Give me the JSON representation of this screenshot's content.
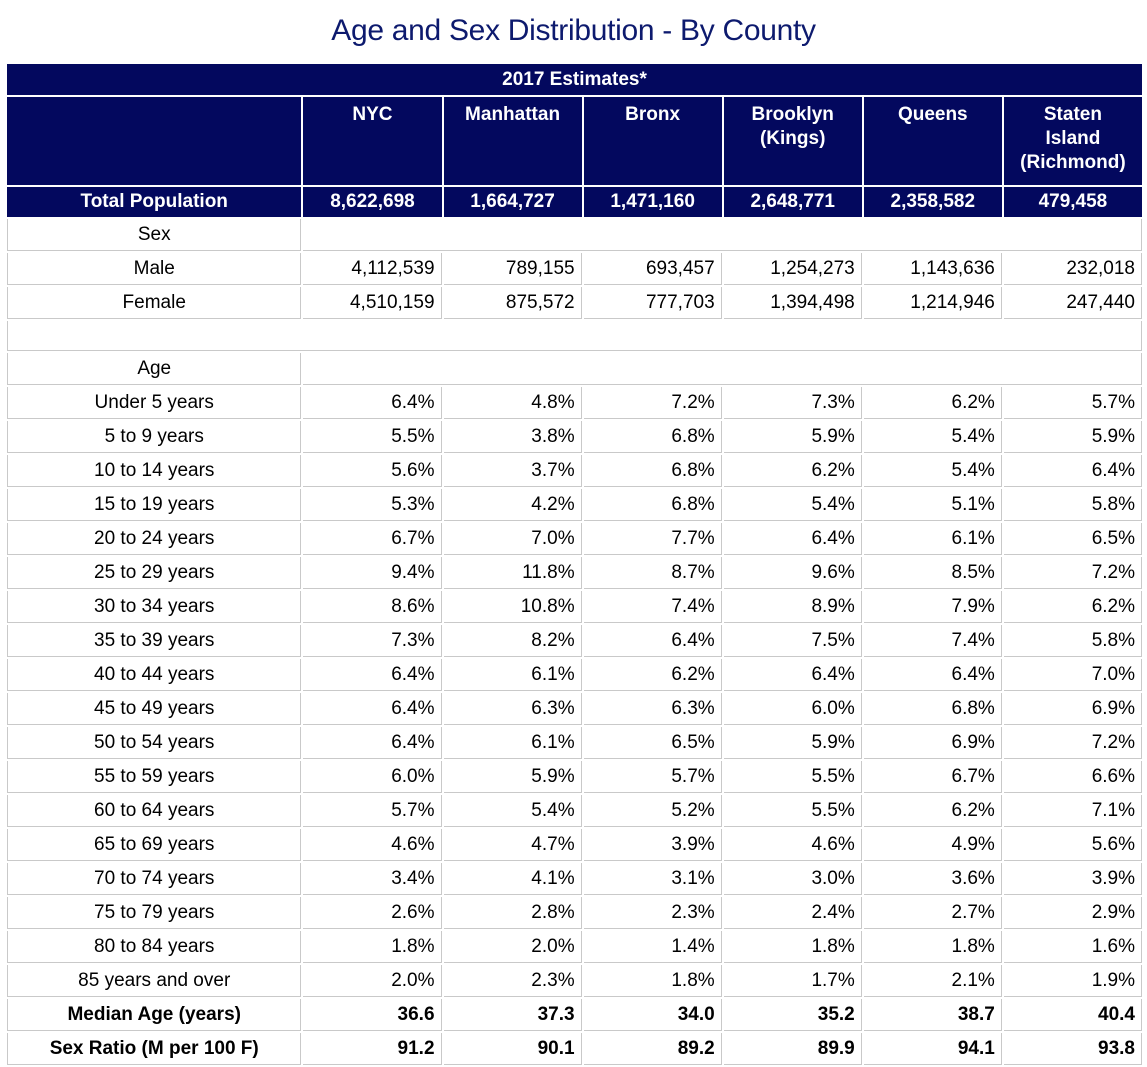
{
  "title": "Age and Sex Distribution - By County",
  "banner": "2017 Estimates*",
  "columns": [
    "NYC",
    "Manhattan",
    "Bronx",
    "Brooklyn\n(Kings)",
    "Queens",
    "Staten\nIsland\n(Richmond)"
  ],
  "total_population": {
    "label": "Total Population",
    "values": [
      "8,622,698",
      "1,664,727",
      "1,471,160",
      "2,648,771",
      "2,358,582",
      "479,458"
    ]
  },
  "sex": {
    "label": "Sex",
    "rows": [
      {
        "label": "Male",
        "values": [
          "4,112,539",
          "789,155",
          "693,457",
          "1,254,273",
          "1,143,636",
          "232,018"
        ]
      },
      {
        "label": "Female",
        "values": [
          "4,510,159",
          "875,572",
          "777,703",
          "1,394,498",
          "1,214,946",
          "247,440"
        ]
      }
    ]
  },
  "age": {
    "label": "Age",
    "rows": [
      {
        "label": "Under 5 years",
        "values": [
          "6.4%",
          "4.8%",
          "7.2%",
          "7.3%",
          "6.2%",
          "5.7%"
        ]
      },
      {
        "label": "5 to 9 years",
        "values": [
          "5.5%",
          "3.8%",
          "6.8%",
          "5.9%",
          "5.4%",
          "5.9%"
        ]
      },
      {
        "label": "10 to 14 years",
        "values": [
          "5.6%",
          "3.7%",
          "6.8%",
          "6.2%",
          "5.4%",
          "6.4%"
        ]
      },
      {
        "label": "15 to 19 years",
        "values": [
          "5.3%",
          "4.2%",
          "6.8%",
          "5.4%",
          "5.1%",
          "5.8%"
        ]
      },
      {
        "label": "20 to 24 years",
        "values": [
          "6.7%",
          "7.0%",
          "7.7%",
          "6.4%",
          "6.1%",
          "6.5%"
        ]
      },
      {
        "label": "25 to 29 years",
        "values": [
          "9.4%",
          "11.8%",
          "8.7%",
          "9.6%",
          "8.5%",
          "7.2%"
        ]
      },
      {
        "label": "30 to 34 years",
        "values": [
          "8.6%",
          "10.8%",
          "7.4%",
          "8.9%",
          "7.9%",
          "6.2%"
        ]
      },
      {
        "label": "35 to 39 years",
        "values": [
          "7.3%",
          "8.2%",
          "6.4%",
          "7.5%",
          "7.4%",
          "5.8%"
        ]
      },
      {
        "label": "40 to 44 years",
        "values": [
          "6.4%",
          "6.1%",
          "6.2%",
          "6.4%",
          "6.4%",
          "7.0%"
        ]
      },
      {
        "label": "45 to 49 years",
        "values": [
          "6.4%",
          "6.3%",
          "6.3%",
          "6.0%",
          "6.8%",
          "6.9%"
        ]
      },
      {
        "label": "50 to 54 years",
        "values": [
          "6.4%",
          "6.1%",
          "6.5%",
          "5.9%",
          "6.9%",
          "7.2%"
        ]
      },
      {
        "label": "55 to 59 years",
        "values": [
          "6.0%",
          "5.9%",
          "5.7%",
          "5.5%",
          "6.7%",
          "6.6%"
        ]
      },
      {
        "label": "60 to 64 years",
        "values": [
          "5.7%",
          "5.4%",
          "5.2%",
          "5.5%",
          "6.2%",
          "7.1%"
        ]
      },
      {
        "label": "65 to 69 years",
        "values": [
          "4.6%",
          "4.7%",
          "3.9%",
          "4.6%",
          "4.9%",
          "5.6%"
        ]
      },
      {
        "label": "70 to 74 years",
        "values": [
          "3.4%",
          "4.1%",
          "3.1%",
          "3.0%",
          "3.6%",
          "3.9%"
        ]
      },
      {
        "label": "75 to 79 years",
        "values": [
          "2.6%",
          "2.8%",
          "2.3%",
          "2.4%",
          "2.7%",
          "2.9%"
        ]
      },
      {
        "label": "80 to 84 years",
        "values": [
          "1.8%",
          "2.0%",
          "1.4%",
          "1.8%",
          "1.8%",
          "1.6%"
        ]
      },
      {
        "label": "85 years and over",
        "values": [
          "2.0%",
          "2.3%",
          "1.8%",
          "1.7%",
          "2.1%",
          "1.9%"
        ]
      }
    ]
  },
  "summary_rows": [
    {
      "label": "Median Age (years)",
      "values": [
        "36.6",
        "37.3",
        "34.0",
        "35.2",
        "38.7",
        "40.4"
      ]
    },
    {
      "label": "Sex Ratio (M per 100 F)",
      "values": [
        "91.2",
        "90.1",
        "89.2",
        "89.9",
        "94.1",
        "93.8"
      ]
    }
  ],
  "colors": {
    "header_bg": "#03085e",
    "title": "#0d1a6e",
    "grid": "#c9c9c9"
  }
}
